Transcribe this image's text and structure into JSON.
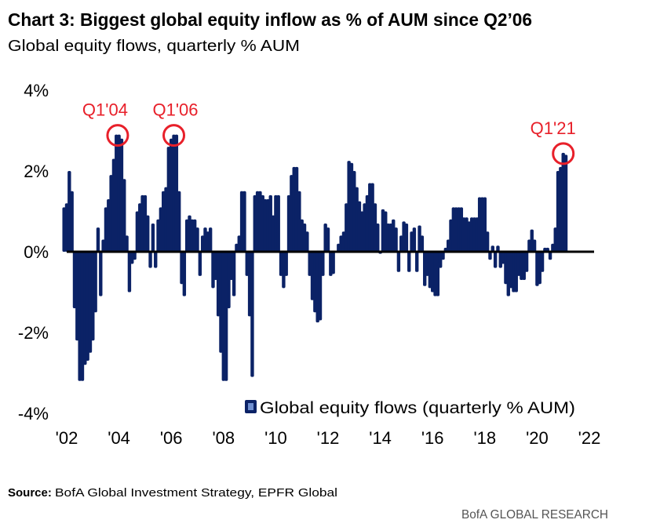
{
  "title": "Chart 3: Biggest global equity inflow as % of AUM since Q2’06",
  "subtitle": "Global equity flows, quarterly % AUM",
  "source_label": "Source:",
  "source_text": "BofA Global Investment Strategy, EPFR Global",
  "brand": "BofA GLOBAL RESEARCH",
  "colors": {
    "bars": "#0b2266",
    "annotation": "#e8202a",
    "zero_line": "#000000"
  },
  "chart_data": {
    "type": "bar",
    "title": "Chart 3: Biggest global equity inflow as % of AUM since Q2’06",
    "subtitle": "Global equity flows, quarterly % AUM",
    "xlabel": "",
    "ylabel": "",
    "ylim": [
      -4,
      4
    ],
    "xlim": [
      2002,
      2022
    ],
    "grid": false,
    "legend": {
      "position": "bottom-right",
      "entries": [
        "Global equity flows (quarterly % AUM)"
      ]
    },
    "y_ticks": [
      "4%",
      "2%",
      "0%",
      "-2%",
      "-4%"
    ],
    "y_tick_values": [
      4,
      2,
      0,
      -2,
      -4
    ],
    "x_ticks": [
      "'02",
      "'04",
      "'06",
      "'08",
      "'10",
      "'12",
      "'14",
      "'16",
      "'18",
      "'20",
      "'22"
    ],
    "x_tick_values": [
      2002,
      2004,
      2006,
      2008,
      2010,
      2012,
      2014,
      2016,
      2018,
      2020,
      2022
    ],
    "annotations": [
      {
        "label": "Q1'04",
        "x": 2003.95,
        "y": 2.9
      },
      {
        "label": "Q1'06",
        "x": 2006.1,
        "y": 2.9
      },
      {
        "label": "Q1'21",
        "x": 2021.0,
        "y": 2.45
      }
    ],
    "series": [
      {
        "name": "Global equity flows (quarterly % AUM)",
        "x": [
          2001.9,
          2002.0,
          2002.1,
          2002.2,
          2002.3,
          2002.4,
          2002.5,
          2002.6,
          2002.7,
          2002.8,
          2002.9,
          2003.0,
          2003.1,
          2003.2,
          2003.3,
          2003.4,
          2003.5,
          2003.6,
          2003.7,
          2003.8,
          2003.9,
          2004.0,
          2004.1,
          2004.2,
          2004.3,
          2004.4,
          2004.5,
          2004.6,
          2004.7,
          2004.8,
          2004.9,
          2005.0,
          2005.1,
          2005.2,
          2005.3,
          2005.4,
          2005.5,
          2005.6,
          2005.7,
          2005.8,
          2005.9,
          2006.0,
          2006.1,
          2006.2,
          2006.3,
          2006.4,
          2006.5,
          2006.6,
          2006.7,
          2006.8,
          2006.9,
          2007.0,
          2007.1,
          2007.2,
          2007.3,
          2007.4,
          2007.5,
          2007.6,
          2007.7,
          2007.8,
          2007.9,
          2008.0,
          2008.1,
          2008.2,
          2008.3,
          2008.4,
          2008.5,
          2008.6,
          2008.7,
          2008.8,
          2008.9,
          2009.0,
          2009.1,
          2009.2,
          2009.3,
          2009.4,
          2009.5,
          2009.6,
          2009.7,
          2009.8,
          2009.9,
          2010.0,
          2010.1,
          2010.2,
          2010.3,
          2010.4,
          2010.5,
          2010.6,
          2010.7,
          2010.8,
          2010.9,
          2011.0,
          2011.1,
          2011.2,
          2011.3,
          2011.4,
          2011.5,
          2011.6,
          2011.7,
          2011.8,
          2011.9,
          2012.0,
          2012.1,
          2012.2,
          2012.3,
          2012.4,
          2012.5,
          2012.6,
          2012.7,
          2012.8,
          2012.9,
          2013.0,
          2013.1,
          2013.2,
          2013.3,
          2013.4,
          2013.5,
          2013.6,
          2013.7,
          2013.8,
          2013.9,
          2014.0,
          2014.1,
          2014.2,
          2014.3,
          2014.4,
          2014.5,
          2014.6,
          2014.7,
          2014.8,
          2014.9,
          2015.0,
          2015.1,
          2015.2,
          2015.3,
          2015.4,
          2015.5,
          2015.6,
          2015.7,
          2015.8,
          2015.9,
          2016.0,
          2016.1,
          2016.2,
          2016.3,
          2016.4,
          2016.5,
          2016.6,
          2016.7,
          2016.8,
          2016.9,
          2017.0,
          2017.1,
          2017.2,
          2017.3,
          2017.4,
          2017.5,
          2017.6,
          2017.7,
          2017.8,
          2017.9,
          2018.0,
          2018.1,
          2018.2,
          2018.3,
          2018.4,
          2018.5,
          2018.6,
          2018.7,
          2018.8,
          2018.9,
          2019.0,
          2019.1,
          2019.2,
          2019.3,
          2019.4,
          2019.5,
          2019.6,
          2019.7,
          2019.8,
          2019.9,
          2020.0,
          2020.1,
          2020.2,
          2020.3,
          2020.4,
          2020.5,
          2020.6,
          2020.7,
          2020.8,
          2020.9,
          2021.0,
          2021.1
        ],
        "values": [
          1.1,
          1.2,
          2.0,
          1.5,
          -1.4,
          -2.2,
          -3.2,
          -3.2,
          -2.8,
          -2.7,
          -2.5,
          -2.2,
          -1.5,
          0.6,
          -1.1,
          0.3,
          1.1,
          1.3,
          1.9,
          2.3,
          2.9,
          2.9,
          2.8,
          1.8,
          0.4,
          -1.0,
          -0.3,
          -0.2,
          1.0,
          1.2,
          1.4,
          1.4,
          0.9,
          -0.4,
          0.7,
          -0.4,
          0.8,
          1.1,
          1.5,
          1.6,
          2.6,
          2.8,
          2.9,
          2.9,
          1.5,
          -0.8,
          -1.1,
          0.8,
          0.9,
          0.8,
          0.8,
          0.6,
          -0.6,
          0.4,
          0.6,
          0.5,
          0.6,
          -0.9,
          -0.7,
          -1.6,
          -2.5,
          -3.2,
          -3.2,
          -1.4,
          -0.7,
          -1.1,
          0.2,
          0.4,
          1.5,
          1.5,
          -0.6,
          -1.6,
          -3.1,
          1.4,
          1.5,
          1.5,
          1.4,
          1.3,
          1.3,
          1.4,
          0.9,
          1.4,
          1.4,
          -0.6,
          -0.9,
          -0.6,
          1.4,
          1.9,
          2.1,
          2.1,
          1.5,
          0.8,
          0.7,
          0.5,
          -0.6,
          -1.2,
          -1.5,
          -1.75,
          -1.7,
          -0.6,
          0.7,
          0.6,
          -0.6,
          -0.55,
          0.0,
          0.2,
          0.4,
          0.5,
          1.2,
          2.25,
          2.2,
          2.0,
          1.6,
          1.25,
          1.0,
          1.2,
          1.4,
          1.7,
          1.7,
          1.2,
          0.7,
          -0.05,
          1.05,
          1.0,
          0.7,
          0.7,
          0.8,
          0.6,
          -0.5,
          0.4,
          0.75,
          0.7,
          -0.5,
          0.5,
          0.6,
          -0.5,
          0.65,
          0.4,
          -0.85,
          -0.6,
          -0.9,
          -1.0,
          -1.1,
          -1.1,
          -0.4,
          -0.2,
          0.1,
          0.3,
          0.8,
          1.1,
          1.1,
          1.1,
          1.1,
          0.85,
          0.85,
          0.75,
          0.85,
          0.85,
          0.85,
          1.35,
          1.35,
          1.35,
          0.5,
          -0.2,
          0.15,
          -0.4,
          0.15,
          -0.4,
          -0.3,
          -0.8,
          -1.1,
          -0.9,
          -1.0,
          -1.0,
          -0.6,
          -0.7,
          -0.7,
          -0.5,
          0.3,
          0.55,
          0.3,
          -0.85,
          -0.8,
          -0.5,
          0.1,
          0.1,
          -0.2,
          0.2,
          0.6,
          2.0,
          2.1,
          2.45,
          2.4
        ]
      }
    ]
  }
}
